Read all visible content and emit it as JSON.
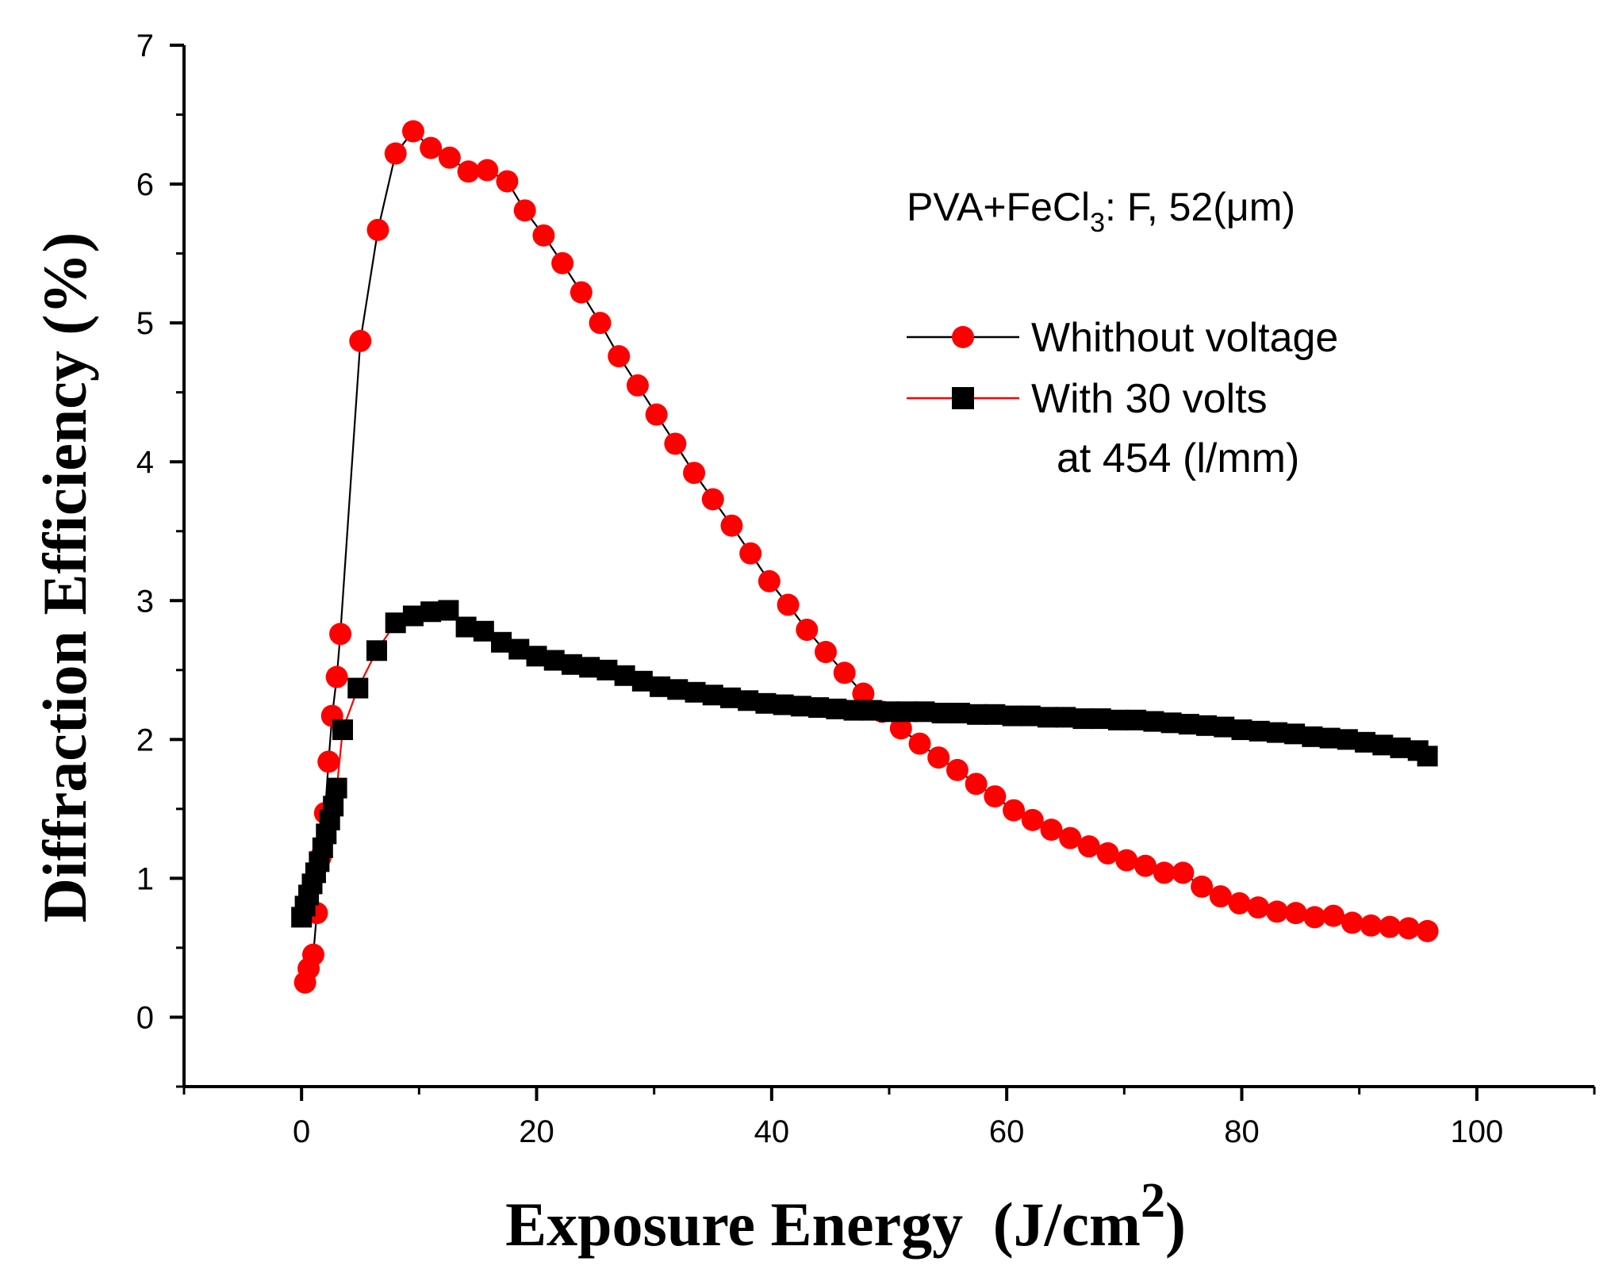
{
  "chart_data": {
    "type": "scatter",
    "title": "",
    "xlabel": "Exposure Energy",
    "xlabel_units_base": "(J/cm",
    "xlabel_units_exp": "2",
    "xlabel_units_close": ")",
    "ylabel": "Diffraction Efficiency (%)",
    "xlim": [
      -10,
      110
    ],
    "ylim": [
      -0.5,
      7
    ],
    "x_ticks": [
      "0",
      "20",
      "40",
      "60",
      "80",
      "100"
    ],
    "y_ticks": [
      "0",
      "1",
      "2",
      "3",
      "4",
      "5",
      "6",
      "7"
    ],
    "x_tick_values": [
      0,
      20,
      40,
      60,
      80,
      100
    ],
    "y_tick_values": [
      0,
      1,
      2,
      3,
      4,
      5,
      6,
      7
    ],
    "annotation": {
      "prefix": "PVA+FeCl",
      "subscript": "3",
      "suffix": ": F, 52(",
      "mu": "μ",
      "unit_end": "m)"
    },
    "legend": {
      "position": "top-right",
      "extra_line": "at 454 (l/mm)"
    },
    "series": [
      {
        "name": "Whithout voltage",
        "marker": "circle",
        "marker_color": "#ff0000",
        "line_color": "#000000",
        "x": [
          0.3,
          0.6,
          1.0,
          1.3,
          1.6,
          2.0,
          2.3,
          2.6,
          3.0,
          3.3,
          5.0,
          6.5,
          8.0,
          9.5,
          11.0,
          12.6,
          14.2,
          15.8,
          17.5,
          19.0,
          20.6,
          22.2,
          23.8,
          25.4,
          27.0,
          28.6,
          30.2,
          31.8,
          33.4,
          35.0,
          36.6,
          38.2,
          39.8,
          41.4,
          43.0,
          44.6,
          46.2,
          47.8,
          49.4,
          51.0,
          52.6,
          54.2,
          55.8,
          57.4,
          59.0,
          60.6,
          62.2,
          63.8,
          65.4,
          67.0,
          68.6,
          70.2,
          71.8,
          73.4,
          75.0,
          76.6,
          78.2,
          79.8,
          81.4,
          83.0,
          84.6,
          86.2,
          87.8,
          89.4,
          91.0,
          92.6,
          94.2,
          95.8
        ],
        "values": [
          0.25,
          0.35,
          0.45,
          0.75,
          1.15,
          1.47,
          1.84,
          2.17,
          2.45,
          2.76,
          4.87,
          5.67,
          6.22,
          6.38,
          6.26,
          6.19,
          6.09,
          6.1,
          6.02,
          5.81,
          5.63,
          5.43,
          5.22,
          5.0,
          4.76,
          4.55,
          4.34,
          4.13,
          3.92,
          3.73,
          3.54,
          3.34,
          3.14,
          2.97,
          2.79,
          2.63,
          2.48,
          2.33,
          2.2,
          2.08,
          1.97,
          1.87,
          1.78,
          1.68,
          1.59,
          1.49,
          1.42,
          1.35,
          1.29,
          1.23,
          1.18,
          1.13,
          1.09,
          1.04,
          1.04,
          0.94,
          0.87,
          0.82,
          0.79,
          0.76,
          0.75,
          0.72,
          0.73,
          0.68,
          0.66,
          0.65,
          0.64,
          0.62
        ]
      },
      {
        "name": "With 30 volts",
        "marker": "square",
        "marker_color": "#000000",
        "line_color": "#ff0000",
        "x": [
          0.0,
          0.3,
          0.6,
          0.9,
          1.2,
          1.5,
          1.8,
          2.1,
          2.4,
          2.7,
          3.0,
          3.5,
          4.8,
          6.4,
          8.0,
          9.5,
          11.0,
          12.5,
          14.0,
          15.5,
          17.0,
          18.5,
          20.0,
          21.5,
          23.0,
          24.5,
          26.0,
          27.5,
          29.0,
          30.5,
          32.0,
          33.5,
          35.0,
          36.5,
          38.0,
          39.5,
          41.0,
          42.5,
          44.0,
          45.5,
          47.0,
          48.5,
          50.0,
          51.5,
          53.0,
          54.5,
          56.0,
          57.5,
          59.0,
          60.5,
          62.0,
          63.5,
          65.0,
          66.5,
          68.0,
          69.5,
          71.0,
          72.5,
          74.0,
          75.5,
          77.0,
          78.5,
          80.0,
          81.5,
          83.0,
          84.5,
          86.0,
          87.5,
          89.0,
          90.5,
          92.0,
          93.5,
          95.0,
          95.8
        ],
        "values": [
          0.72,
          0.8,
          0.88,
          0.96,
          1.04,
          1.12,
          1.22,
          1.32,
          1.42,
          1.52,
          1.65,
          2.07,
          2.37,
          2.64,
          2.84,
          2.89,
          2.92,
          2.93,
          2.81,
          2.78,
          2.7,
          2.65,
          2.6,
          2.57,
          2.54,
          2.52,
          2.5,
          2.46,
          2.42,
          2.38,
          2.36,
          2.34,
          2.32,
          2.3,
          2.28,
          2.26,
          2.25,
          2.24,
          2.23,
          2.22,
          2.21,
          2.21,
          2.2,
          2.2,
          2.2,
          2.19,
          2.19,
          2.18,
          2.18,
          2.17,
          2.17,
          2.16,
          2.16,
          2.15,
          2.15,
          2.14,
          2.14,
          2.13,
          2.12,
          2.11,
          2.1,
          2.09,
          2.07,
          2.06,
          2.05,
          2.04,
          2.02,
          2.01,
          2.0,
          1.98,
          1.96,
          1.94,
          1.92,
          1.88
        ]
      }
    ]
  }
}
